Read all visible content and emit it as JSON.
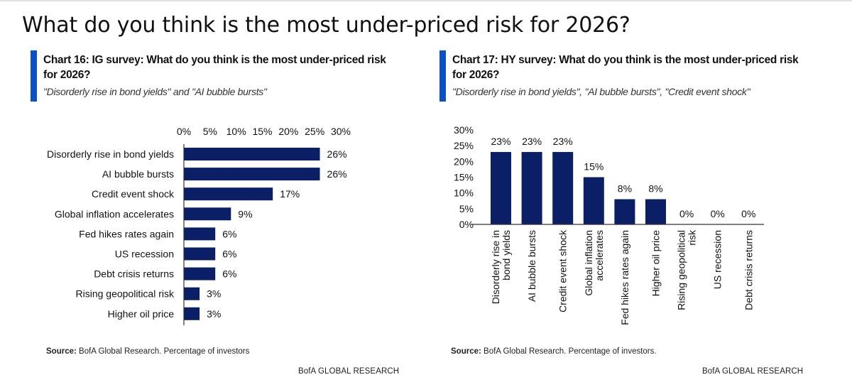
{
  "page": {
    "title": "What do you think is the most under-priced risk for 2026?"
  },
  "charts": [
    {
      "id": "chart16",
      "title": "Chart 16: IG survey: What do you think is the most under-priced risk for 2026?",
      "subtitle": "\"Disorderly rise in bond yields\" and \"AI bubble bursts\"",
      "source_label": "Source:",
      "source_text": "BofA Global Research. Percentage of investors",
      "brand": "BofA GLOBAL RESEARCH"
    },
    {
      "id": "chart17",
      "title": "Chart 17: HY survey: What do you think is the most under-priced risk for 2026?",
      "subtitle": "\"Disorderly rise in bond yields\", \"AI bubble bursts\", \"Credit event shock\"",
      "source_label": "Source:",
      "source_text": "BofA Global Research. Percentage of investors.",
      "brand": "BofA GLOBAL RESEARCH"
    }
  ],
  "colors": {
    "bar": "#0b1f66",
    "accent": "#0a52c6",
    "axis": "#333333"
  },
  "chart_data": [
    {
      "type": "bar",
      "orientation": "horizontal",
      "title": "Chart 16: IG survey: What do you think is the most under-priced risk for 2026?",
      "categories": [
        "Disorderly rise in bond yields",
        "AI bubble bursts",
        "Credit event shock",
        "Global inflation accelerates",
        "Fed hikes rates again",
        "US recession",
        "Debt crisis returns",
        "Rising geopolitical risk",
        "Higher oil price"
      ],
      "values": [
        26,
        26,
        17,
        9,
        6,
        6,
        6,
        3,
        3
      ],
      "data_labels": [
        "26%",
        "26%",
        "17%",
        "9%",
        "6%",
        "6%",
        "6%",
        "3%",
        "3%"
      ],
      "xlabel": "",
      "ylabel": "",
      "xlim": [
        0,
        30
      ],
      "ticks": [
        0,
        5,
        10,
        15,
        20,
        25,
        30
      ],
      "tick_labels": [
        "0%",
        "5%",
        "10%",
        "15%",
        "20%",
        "25%",
        "30%"
      ],
      "axis_position": "top",
      "grid": false,
      "unit": "Percentage of investors"
    },
    {
      "type": "bar",
      "orientation": "vertical",
      "title": "Chart 17: HY survey: What do you think is the most under-priced risk for 2026?",
      "categories": [
        "Disorderly rise in bond yields",
        "AI bubble bursts",
        "Credit event shock",
        "Global inflation accelerates",
        "Fed hikes rates again",
        "Higher oil price",
        "Rising geopolitical risk",
        "US recession",
        "Debt crisis returns"
      ],
      "category_lines": [
        [
          "Disorderly rise in",
          "bond yields"
        ],
        [
          "AI bubble bursts"
        ],
        [
          "Credit event shock"
        ],
        [
          "Global inflation",
          "accelerates"
        ],
        [
          "Fed hikes rates again"
        ],
        [
          "Higher oil price"
        ],
        [
          "Rising geopolitical",
          "risk"
        ],
        [
          "US recession"
        ],
        [
          "Debt crisis returns"
        ]
      ],
      "values": [
        23,
        23,
        23,
        15,
        8,
        8,
        0,
        0,
        0
      ],
      "data_labels": [
        "23%",
        "23%",
        "23%",
        "15%",
        "8%",
        "8%",
        "0%",
        "0%",
        "0%"
      ],
      "xlabel": "",
      "ylabel": "",
      "ylim": [
        0,
        30
      ],
      "ticks": [
        0,
        5,
        10,
        15,
        20,
        25,
        30
      ],
      "tick_labels": [
        "0%",
        "5%",
        "10%",
        "15%",
        "20%",
        "25%",
        "30%"
      ],
      "grid": false,
      "unit": "Percentage of investors"
    }
  ]
}
